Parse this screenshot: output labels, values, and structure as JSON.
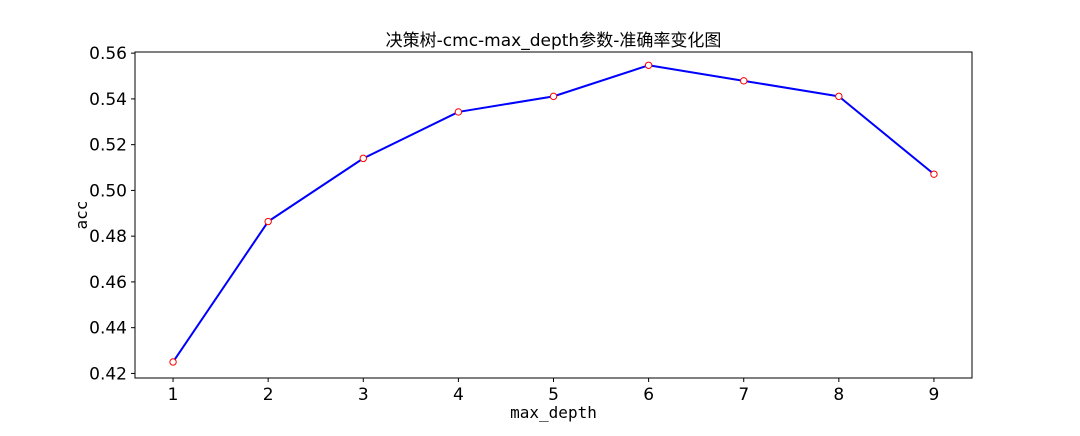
{
  "chart_data": {
    "type": "line",
    "title": "决策树-cmc-max_depth参数-准确率变化图",
    "xlabel": "max_depth",
    "ylabel": "acc",
    "x": [
      1,
      2,
      3,
      4,
      5,
      6,
      7,
      8,
      9
    ],
    "series": [
      {
        "values": [
          0.425,
          0.4864,
          0.514,
          0.5343,
          0.5411,
          0.5547,
          0.5479,
          0.5411,
          0.5071
        ]
      }
    ],
    "xlim": [
      0.6,
      9.4
    ],
    "ylim": [
      0.418,
      0.5605
    ],
    "xticks": [
      "1",
      "2",
      "3",
      "4",
      "5",
      "6",
      "7",
      "8",
      "9"
    ],
    "yticks": [
      "0.42",
      "0.44",
      "0.46",
      "0.48",
      "0.50",
      "0.52",
      "0.54",
      "0.56"
    ],
    "grid": false,
    "colors": {
      "line": "#0000ff",
      "marker_edge": "#ff0000",
      "marker_face": "#ffffff",
      "axes": "#000000"
    }
  }
}
